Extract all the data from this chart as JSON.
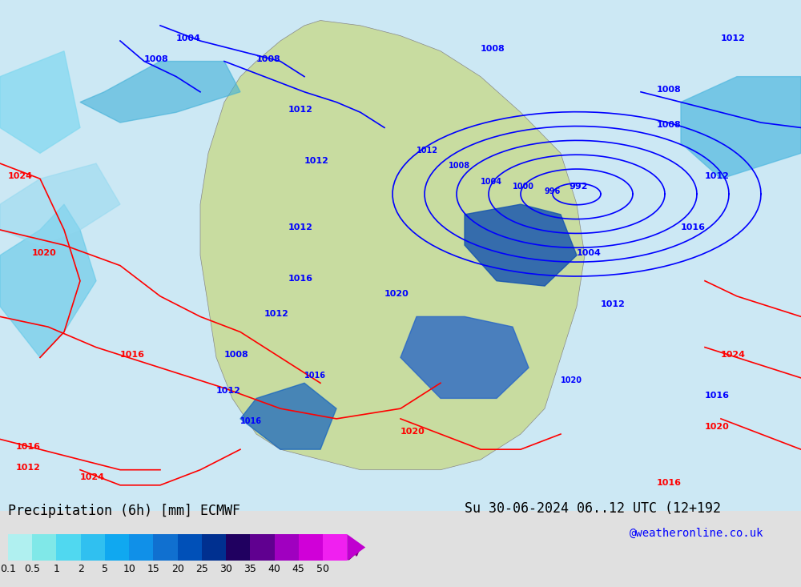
{
  "title_left": "Precipitation (6h) [mm] ECMWF",
  "title_right": "Su 30-06-2024 06..12 UTC (12+192",
  "credit": "@weatheronline.co.uk",
  "colorbar_values": [
    0.1,
    0.5,
    1,
    2,
    5,
    10,
    15,
    20,
    25,
    30,
    35,
    40,
    45,
    50
  ],
  "colorbar_colors": [
    "#b0f0f0",
    "#80e8e8",
    "#50d8f0",
    "#30c0f0",
    "#10a8f0",
    "#1090e8",
    "#1070d0",
    "#0050b8",
    "#003090",
    "#200060",
    "#600090",
    "#a000c0",
    "#d000d8",
    "#f020f0"
  ],
  "bg_color": "#e8e8e8",
  "map_bg": "#f0f0f0",
  "bottom_bar_height": 0.12,
  "colorbar_label_fontsize": 11,
  "title_fontsize": 13,
  "credit_fontsize": 11
}
